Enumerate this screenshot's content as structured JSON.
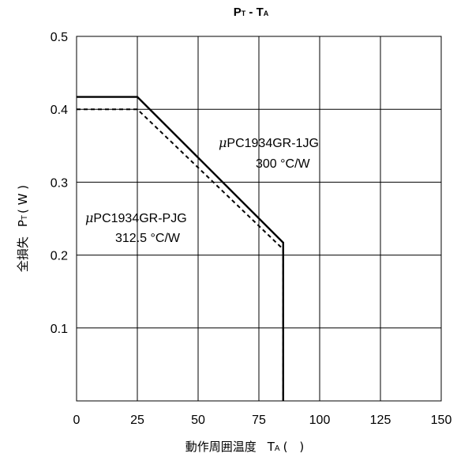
{
  "chart_data": {
    "type": "line",
    "title": {
      "main_p": "P",
      "sub_t": "T",
      "dash": " - ",
      "main_t": "T",
      "sub_a": "A"
    },
    "xlabel": {
      "kanji": "動作周囲温度",
      "var": "T",
      "sub": "A",
      "unit": "(　)"
    },
    "ylabel": {
      "kanji": "全損失",
      "var": "P",
      "sub": "T",
      "unit": "( W )"
    },
    "xlim": [
      0,
      150
    ],
    "ylim": [
      0,
      0.5
    ],
    "x_ticks": [
      "0",
      "25",
      "50",
      "75",
      "100",
      "125",
      "150"
    ],
    "x_tick_values": [
      0,
      25,
      50,
      75,
      100,
      125,
      150
    ],
    "y_ticks": [
      "0.1",
      "0.2",
      "0.3",
      "0.4",
      "0.5"
    ],
    "y_tick_values": [
      0.1,
      0.2,
      0.3,
      0.4,
      0.5
    ],
    "grid": true,
    "series": [
      {
        "name": "μPC1934GR-1JG",
        "style": "solid",
        "color": "#000000",
        "points": [
          [
            0,
            0.417
          ],
          [
            25,
            0.417
          ],
          [
            85,
            0.217
          ],
          [
            85,
            0
          ]
        ]
      },
      {
        "name": "μPC1934GR-PJG",
        "style": "dashed",
        "color": "#000000",
        "points": [
          [
            0,
            0.4
          ],
          [
            25,
            0.4
          ],
          [
            85,
            0.208
          ],
          [
            85,
            0
          ]
        ]
      }
    ],
    "annotations": [
      {
        "mu": "μ",
        "text": "PC1934GR-1JG",
        "line2": "300 °C/W"
      },
      {
        "mu": "μ",
        "text": "PC1934GR-PJG",
        "line2": "312.5 °C/W"
      }
    ]
  }
}
